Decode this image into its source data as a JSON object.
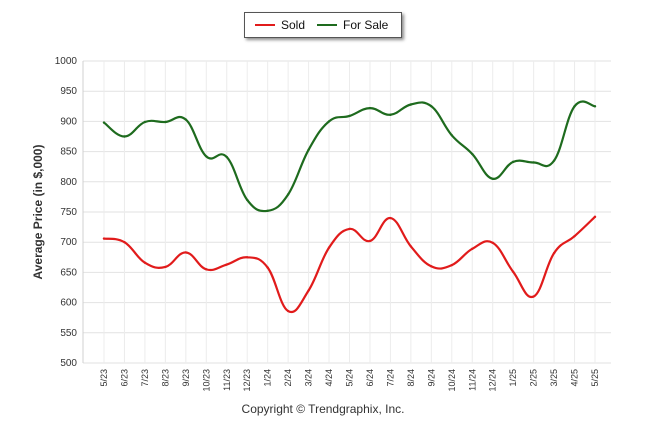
{
  "chart_data": {
    "type": "line",
    "ylabel": "Average Price (in $,000)",
    "xlabel": "",
    "ylim": [
      500,
      1000
    ],
    "yticks": [
      500,
      550,
      600,
      650,
      700,
      750,
      800,
      850,
      900,
      950,
      1000
    ],
    "grid": true,
    "legend_position": "top-center",
    "categories": [
      "5/23",
      "6/23",
      "7/23",
      "8/23",
      "9/23",
      "10/23",
      "11/23",
      "12/23",
      "1/24",
      "2/24",
      "3/24",
      "4/24",
      "5/24",
      "6/24",
      "7/24",
      "8/24",
      "9/24",
      "10/24",
      "11/24",
      "12/24",
      "1/25",
      "2/25",
      "3/25",
      "4/25",
      "5/25"
    ],
    "series": [
      {
        "name": "Sold",
        "color": "#e11b1b",
        "values": [
          706,
          700,
          666,
          659,
          683,
          655,
          663,
          675,
          658,
          586,
          620,
          691,
          722,
          702,
          740,
          693,
          660,
          662,
          689,
          699,
          651,
          610,
          682,
          710,
          742
        ]
      },
      {
        "name": "For Sale",
        "color": "#1e6b1e",
        "values": [
          898,
          875,
          899,
          899,
          903,
          842,
          841,
          770,
          752,
          779,
          853,
          900,
          909,
          922,
          911,
          928,
          925,
          877,
          846,
          805,
          833,
          832,
          835,
          925,
          925
        ]
      }
    ],
    "copyright": "Copyright © Trendgraphix, Inc."
  }
}
